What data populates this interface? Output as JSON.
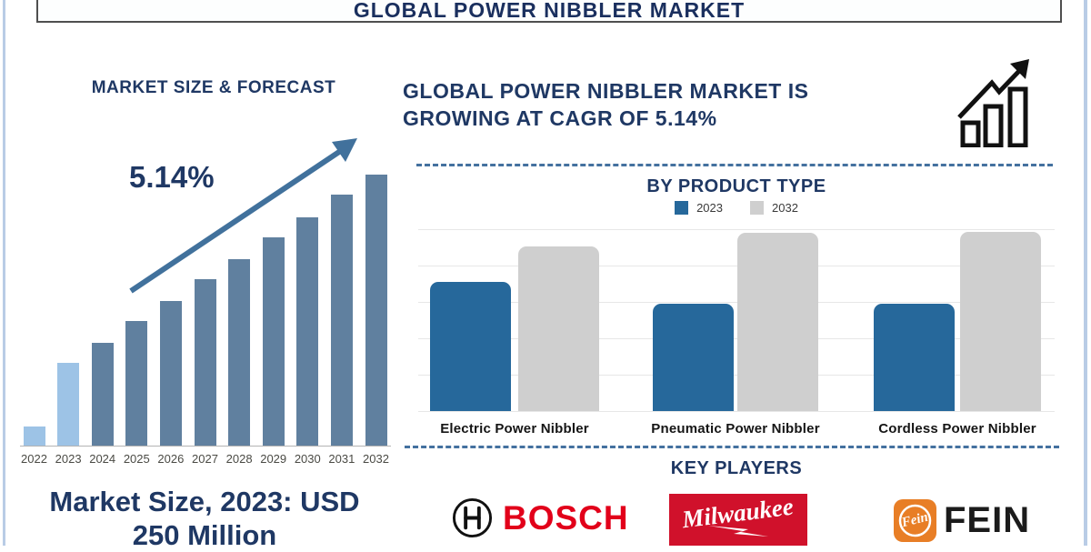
{
  "page": {
    "title": "GLOBAL POWER NIBBLER MARKET"
  },
  "theme": {
    "navy_text": "#1F3864",
    "steel_blue_bar": "#60809F",
    "light_blue_bar": "#9DC3E6",
    "arrow_blue": "#41719C",
    "product_blue": "#26689B",
    "product_gray": "#CFCFCF",
    "dashed_line_blue": "#44719F",
    "page_border_blue": "#B9CCE6",
    "bosch_red": "#E2001A",
    "milwaukee_red": "#D0112B",
    "fein_orange": "#E87E26"
  },
  "left_panel": {
    "chart_title": "MARKET SIZE & FORECAST",
    "cagr_label": "5.14%",
    "market_size_note": "Market Size, 2023: USD 250 Million"
  },
  "right_panel": {
    "headline": "GLOBAL POWER NIBBLER MARKET IS GROWING AT CAGR OF 5.14%",
    "growth_icon": "growth-chart-icon",
    "key_players": {
      "title": "KEY PLAYERS",
      "players": [
        {
          "name": "BOSCH"
        },
        {
          "name": "Milwaukee"
        },
        {
          "name": "FEIN",
          "badge_text": "Fein"
        }
      ]
    }
  },
  "chart_data": [
    {
      "type": "bar",
      "title": "MARKET SIZE & FORECAST",
      "categories": [
        "2022",
        "2023",
        "2024",
        "2025",
        "2026",
        "2027",
        "2028",
        "2029",
        "2030",
        "2031",
        "2032"
      ],
      "values_relative_pct": [
        7,
        30.5,
        37.9,
        46,
        53.4,
        61.4,
        68.8,
        76.8,
        84.2,
        92.6,
        100
      ],
      "units": "relative bar height, % of 2032 bar (no numeric axis shown)",
      "known_point": "2023 = USD 250 Million",
      "annotations": [
        "5.14%"
      ],
      "bar_colors": [
        "#9DC3E6",
        "#9DC3E6",
        "#60809F",
        "#60809F",
        "#60809F",
        "#60809F",
        "#60809F",
        "#60809F",
        "#60809F",
        "#60809F",
        "#60809F"
      ],
      "xlabel": "",
      "ylabel": "",
      "grid": false,
      "trend_arrow": "up"
    },
    {
      "type": "bar",
      "title": "BY PRODUCT TYPE",
      "categories": [
        "Electric Power Nibbler",
        "Pneumatic Power Nibbler",
        "Cordless Power Nibbler"
      ],
      "series": [
        {
          "name": "2023",
          "color": "#26689B",
          "values_relative_pct": [
            72,
            60,
            60
          ]
        },
        {
          "name": "2032",
          "color": "#CFCFCF",
          "values_relative_pct": [
            92,
            99.5,
            100
          ]
        }
      ],
      "units": "relative bar height, % of tallest bar (no numeric axis shown)",
      "grid": true,
      "legend_position": "top"
    }
  ]
}
